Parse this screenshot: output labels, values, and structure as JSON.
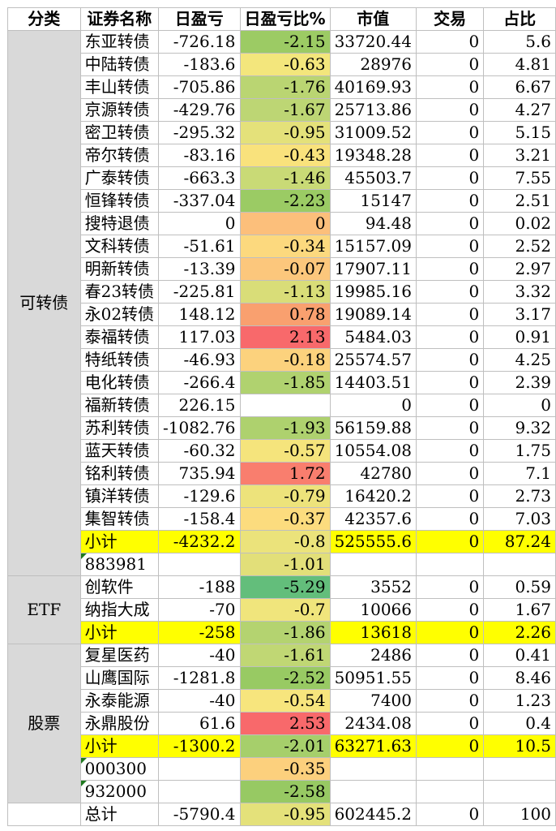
{
  "headers": [
    "分类",
    "证券名称",
    "日盈亏",
    "日盈亏比%",
    "市值",
    "交易",
    "占比"
  ],
  "groups": [
    {
      "category": "可转债",
      "rows": [
        {
          "name": "东亚转债",
          "pnl": "-726.18",
          "pct": "-2.15",
          "pct_color": "#9ccb64",
          "mv": "33720.44",
          "trade": "0",
          "share": "5.6"
        },
        {
          "name": "中陆转债",
          "pnl": "-183.6",
          "pct": "-0.63",
          "pct_color": "#f3e67c",
          "mv": "28976",
          "trade": "0",
          "share": "4.81"
        },
        {
          "name": "丰山转债",
          "pnl": "-705.86",
          "pct": "-1.76",
          "pct_color": "#bad572",
          "mv": "40169.93",
          "trade": "0",
          "share": "6.67"
        },
        {
          "name": "京源转债",
          "pnl": "-429.76",
          "pct": "-1.67",
          "pct_color": "#bdd674",
          "mv": "25713.86",
          "trade": "0",
          "share": "4.27"
        },
        {
          "name": "密卫转债",
          "pnl": "-295.32",
          "pct": "-0.95",
          "pct_color": "#e4e17a",
          "mv": "31009.52",
          "trade": "0",
          "share": "5.15"
        },
        {
          "name": "帝尔转债",
          "pnl": "-83.16",
          "pct": "-0.43",
          "pct_color": "#f9e27c",
          "mv": "19348.28",
          "trade": "0",
          "share": "3.21"
        },
        {
          "name": "广泰转债",
          "pnl": "-663.3",
          "pct": "-1.46",
          "pct_color": "#c9da76",
          "mv": "45503.7",
          "trade": "0",
          "share": "7.55"
        },
        {
          "name": "恒锋转债",
          "pnl": "-337.04",
          "pct": "-2.23",
          "pct_color": "#9bcb64",
          "mv": "15147",
          "trade": "0",
          "share": "2.51"
        },
        {
          "name": "搜特退债",
          "pnl": "0",
          "pct": "0",
          "pct_color": "#fcbf7b",
          "mv": "94.48",
          "trade": "0",
          "share": "0.02"
        },
        {
          "name": "文科转债",
          "pnl": "-51.61",
          "pct": "-0.34",
          "pct_color": "#fcd97e",
          "mv": "15157.09",
          "trade": "0",
          "share": "2.52"
        },
        {
          "name": "明新转债",
          "pnl": "-13.39",
          "pct": "-0.07",
          "pct_color": "#fcc77c",
          "mv": "17907.11",
          "trade": "0",
          "share": "2.97"
        },
        {
          "name": "春23转债",
          "pnl": "-225.81",
          "pct": "-1.13",
          "pct_color": "#d9dd78",
          "mv": "19985.16",
          "trade": "0",
          "share": "3.32"
        },
        {
          "name": "永02转债",
          "pnl": "148.12",
          "pct": "0.78",
          "pct_color": "#f9a06f",
          "mv": "19089.14",
          "trade": "0",
          "share": "3.17"
        },
        {
          "name": "泰福转债",
          "pnl": "117.03",
          "pct": "2.13",
          "pct_color": "#f8696b",
          "mv": "5484.03",
          "trade": "0",
          "share": "0.91"
        },
        {
          "name": "特纸转债",
          "pnl": "-46.93",
          "pct": "-0.18",
          "pct_color": "#fcd27d",
          "mv": "25574.57",
          "trade": "0",
          "share": "4.25"
        },
        {
          "name": "电化转债",
          "pnl": "-266.4",
          "pct": "-1.85",
          "pct_color": "#b0d26f",
          "mv": "14403.51",
          "trade": "0",
          "share": "2.39"
        },
        {
          "name": "福新转债",
          "pnl": "226.15",
          "pct": "",
          "pct_color": "#ffffff",
          "mv": "0",
          "trade": "0",
          "share": "0"
        },
        {
          "name": "苏利转债",
          "pnl": "-1082.76",
          "pct": "-1.93",
          "pct_color": "#aed16e",
          "mv": "56159.88",
          "trade": "0",
          "share": "9.32"
        },
        {
          "name": "蓝天转债",
          "pnl": "-60.32",
          "pct": "-0.57",
          "pct_color": "#f5e47c",
          "mv": "10554.08",
          "trade": "0",
          "share": "1.75"
        },
        {
          "name": "铭利转债",
          "pnl": "735.94",
          "pct": "1.72",
          "pct_color": "#f97e6e",
          "mv": "42780",
          "trade": "0",
          "share": "7.1"
        },
        {
          "name": "镇洋转债",
          "pnl": "-129.6",
          "pct": "-0.79",
          "pct_color": "#ede37b",
          "mv": "16420.2",
          "trade": "0",
          "share": "2.73"
        },
        {
          "name": "集智转债",
          "pnl": "-158.4",
          "pct": "-0.37",
          "pct_color": "#fcdc7e",
          "mv": "42357.6",
          "trade": "0",
          "share": "7.03"
        }
      ],
      "subtotal": {
        "name": "小计",
        "pnl": "-4232.2",
        "pct": "-0.8",
        "pct_color": "#ebe37b",
        "mv": "525555.6",
        "trade": "0",
        "share": "87.24"
      },
      "benchmarks": [
        {
          "code": "883981",
          "pct": "-1.01",
          "pct_color": "#e2df79"
        }
      ]
    },
    {
      "category": "ETF",
      "rows": [
        {
          "name": "创软件",
          "pnl": "-188",
          "pct": "-5.29",
          "pct_color": "#63be7b",
          "mv": "3552",
          "trade": "0",
          "share": "0.59"
        },
        {
          "name": "纳指大成",
          "pnl": "-70",
          "pct": "-0.7",
          "pct_color": "#f0e57c",
          "mv": "10066",
          "trade": "0",
          "share": "1.67"
        }
      ],
      "subtotal": {
        "name": "小计",
        "pnl": "-258",
        "pct": "-1.86",
        "pct_color": "#b4d370",
        "mv": "13618",
        "trade": "0",
        "share": "2.26"
      },
      "benchmarks": []
    },
    {
      "category": "股票",
      "rows": [
        {
          "name": "复星医药",
          "pnl": "-40",
          "pct": "-1.61",
          "pct_color": "#c0d774",
          "mv": "2486",
          "trade": "0",
          "share": "0.41"
        },
        {
          "name": "山鹰国际",
          "pnl": "-1281.8",
          "pct": "-2.52",
          "pct_color": "#98ca63",
          "mv": "50951.55",
          "trade": "0",
          "share": "8.46"
        },
        {
          "name": "永泰能源",
          "pnl": "-40",
          "pct": "-0.54",
          "pct_color": "#f7e57d",
          "mv": "7400",
          "trade": "0",
          "share": "1.23"
        },
        {
          "name": "永鼎股份",
          "pnl": "61.6",
          "pct": "2.53",
          "pct_color": "#f8696b",
          "mv": "2434.08",
          "trade": "0",
          "share": "0.4"
        }
      ],
      "subtotal": {
        "name": "小计",
        "pnl": "-1300.2",
        "pct": "-2.01",
        "pct_color": "#a6cf6b",
        "mv": "63271.63",
        "trade": "0",
        "share": "10.5"
      },
      "benchmarks": [
        {
          "code": "000300",
          "pct": "-0.35",
          "pct_color": "#fcd07d"
        },
        {
          "code": "932000",
          "pct": "-2.58",
          "pct_color": "#97c963"
        }
      ]
    }
  ],
  "total": {
    "name": "总计",
    "pnl": "-5790.4",
    "pct": "-0.95",
    "pct_color": "#e4e17a",
    "mv": "602445.2",
    "trade": "0",
    "share": "100"
  }
}
